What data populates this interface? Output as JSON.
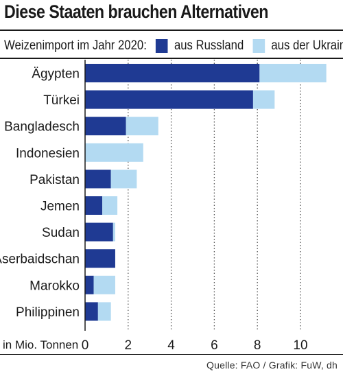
{
  "title": "Diese Staaten brauchen Alternativen",
  "legend": {
    "caption": "Weizenimport im Jahr 2020:",
    "items": [
      {
        "label": "aus Russland",
        "color": "#1f3a93"
      },
      {
        "label": "aus der Ukraine",
        "color": "#b3daf2"
      }
    ]
  },
  "source": "Quelle: FAO / Grafik: FuW, dh",
  "chart_data": {
    "type": "bar",
    "orientation": "horizontal",
    "stacked": true,
    "title": "Diese Staaten brauchen Alternativen",
    "xlabel": "in Mio. Tonnen",
    "xlim": [
      0,
      12
    ],
    "xticks": [
      0,
      2,
      4,
      6,
      8,
      10
    ],
    "grid": "vertical dotted",
    "categories": [
      "Ägypten",
      "Türkei",
      "Bangladesch",
      "Indonesien",
      "Pakistan",
      "Jemen",
      "Sudan",
      "Aserbaidschan",
      "Marokko",
      "Philippinen"
    ],
    "series": [
      {
        "name": "aus Russland",
        "color": "#1f3a93",
        "values": [
          8.1,
          7.8,
          1.9,
          0.0,
          1.2,
          0.8,
          1.3,
          1.4,
          0.4,
          0.6
        ]
      },
      {
        "name": "aus der Ukraine",
        "color": "#b3daf2",
        "values": [
          3.1,
          1.0,
          1.5,
          2.7,
          1.2,
          0.7,
          0.1,
          0.0,
          1.0,
          0.6
        ]
      }
    ],
    "legend_position": "top"
  }
}
